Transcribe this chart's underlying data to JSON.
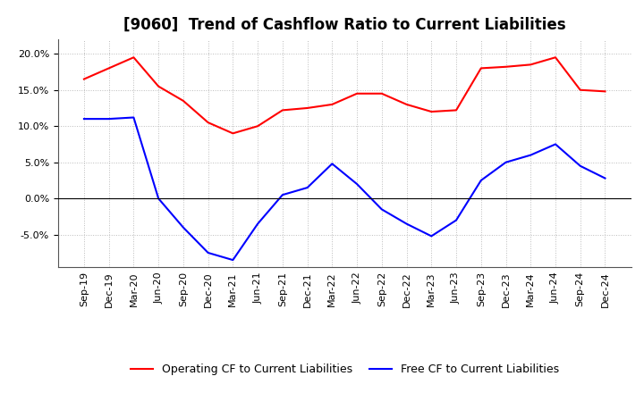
{
  "title": "[9060]  Trend of Cashflow Ratio to Current Liabilities",
  "x_labels": [
    "Sep-19",
    "Dec-19",
    "Mar-20",
    "Jun-20",
    "Sep-20",
    "Dec-20",
    "Mar-21",
    "Jun-21",
    "Sep-21",
    "Dec-21",
    "Mar-22",
    "Jun-22",
    "Sep-22",
    "Dec-22",
    "Mar-23",
    "Jun-23",
    "Sep-23",
    "Dec-23",
    "Mar-24",
    "Jun-24",
    "Sep-24",
    "Dec-24"
  ],
  "operating_cf": [
    16.5,
    18.0,
    19.5,
    15.5,
    13.5,
    10.5,
    9.0,
    10.0,
    12.2,
    12.5,
    13.0,
    14.5,
    14.5,
    13.0,
    12.0,
    12.2,
    18.0,
    18.2,
    18.5,
    19.5,
    15.0,
    14.8
  ],
  "free_cf": [
    11.0,
    11.0,
    11.2,
    0.0,
    -4.0,
    -7.5,
    -8.5,
    -3.5,
    0.5,
    1.5,
    4.8,
    2.0,
    -1.5,
    -3.5,
    -5.2,
    -3.0,
    2.5,
    5.0,
    6.0,
    7.5,
    4.5,
    2.8
  ],
  "operating_color": "#FF0000",
  "free_color": "#0000FF",
  "ylim_min": -9.5,
  "ylim_max": 22.0,
  "yticks": [
    -5.0,
    0.0,
    5.0,
    10.0,
    15.0,
    20.0
  ],
  "legend_op": "Operating CF to Current Liabilities",
  "legend_free": "Free CF to Current Liabilities",
  "bg_color": "#FFFFFF",
  "plot_bg_color": "#FFFFFF",
  "grid_color": "#BBBBBB",
  "title_fontsize": 12,
  "axis_fontsize": 8,
  "legend_fontsize": 9
}
